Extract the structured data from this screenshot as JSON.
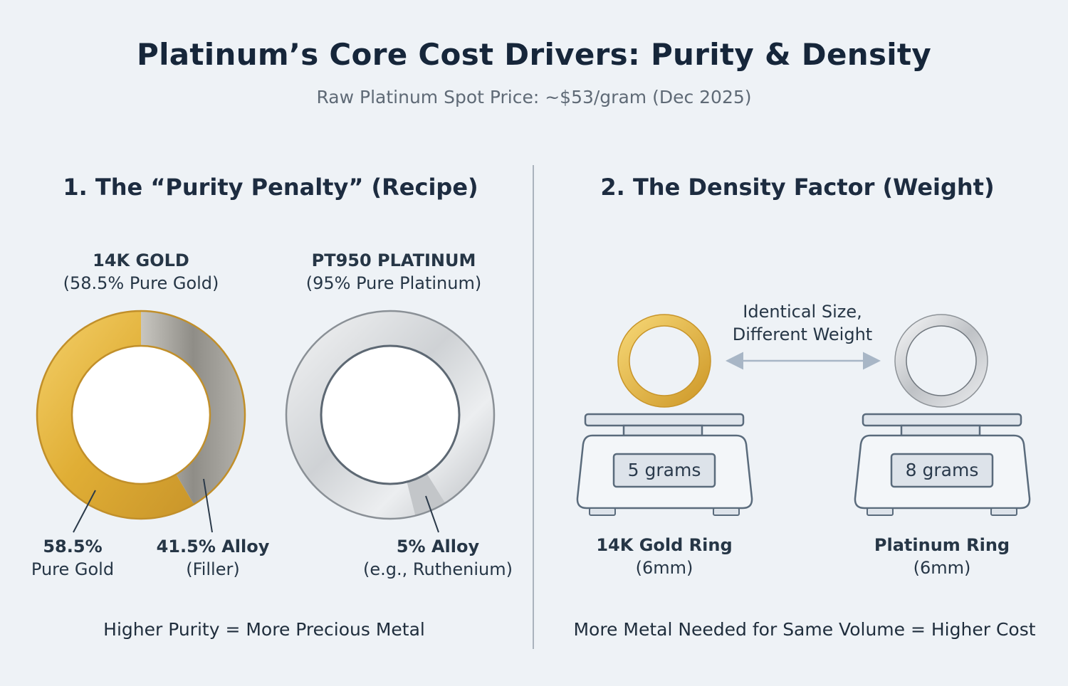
{
  "header": {
    "title": "Platinum’s Core Cost Drivers: Purity & Density",
    "subtitle": "Raw Platinum Spot Price: ~$53/gram (Dec 2025)"
  },
  "section1": {
    "title": "1. The “Purity Penalty” (Recipe)",
    "gold": {
      "heading": "14K GOLD",
      "subheading": "(58.5% Pure Gold)",
      "pure_percent": 58.5,
      "pure_label_bold": "58.5%",
      "pure_label": "Pure Gold",
      "alloy_label_bold": "41.5% Alloy",
      "alloy_label": "(Filler)"
    },
    "platinum": {
      "heading": "PT950 PLATINUM",
      "subheading": "(95% Pure Platinum)",
      "pure_percent": 95,
      "alloy_label_bold": "5% Alloy",
      "alloy_label": "(e.g., Ruthenium)"
    },
    "footer": "Higher Purity = More Precious Metal"
  },
  "section2": {
    "title": "2. The Density Factor (Weight)",
    "comparison_line1": "Identical Size,",
    "comparison_line2": "Different Weight",
    "gold_scale": {
      "reading": "5 grams",
      "caption_bold": "14K Gold Ring",
      "caption": "(6mm)"
    },
    "platinum_scale": {
      "reading": "8 grams",
      "caption_bold": "Platinum Ring",
      "caption": "(6mm)"
    },
    "footer": "More Metal Needed for Same Volume = Higher Cost"
  },
  "colors": {
    "gold": "#e2b43c",
    "alloy": "#9a9892",
    "platinum": "#d6d8da",
    "outline": "#5a6b7c",
    "scale_fill": "#f3f6f9",
    "scale_display": "#dde3ea"
  }
}
